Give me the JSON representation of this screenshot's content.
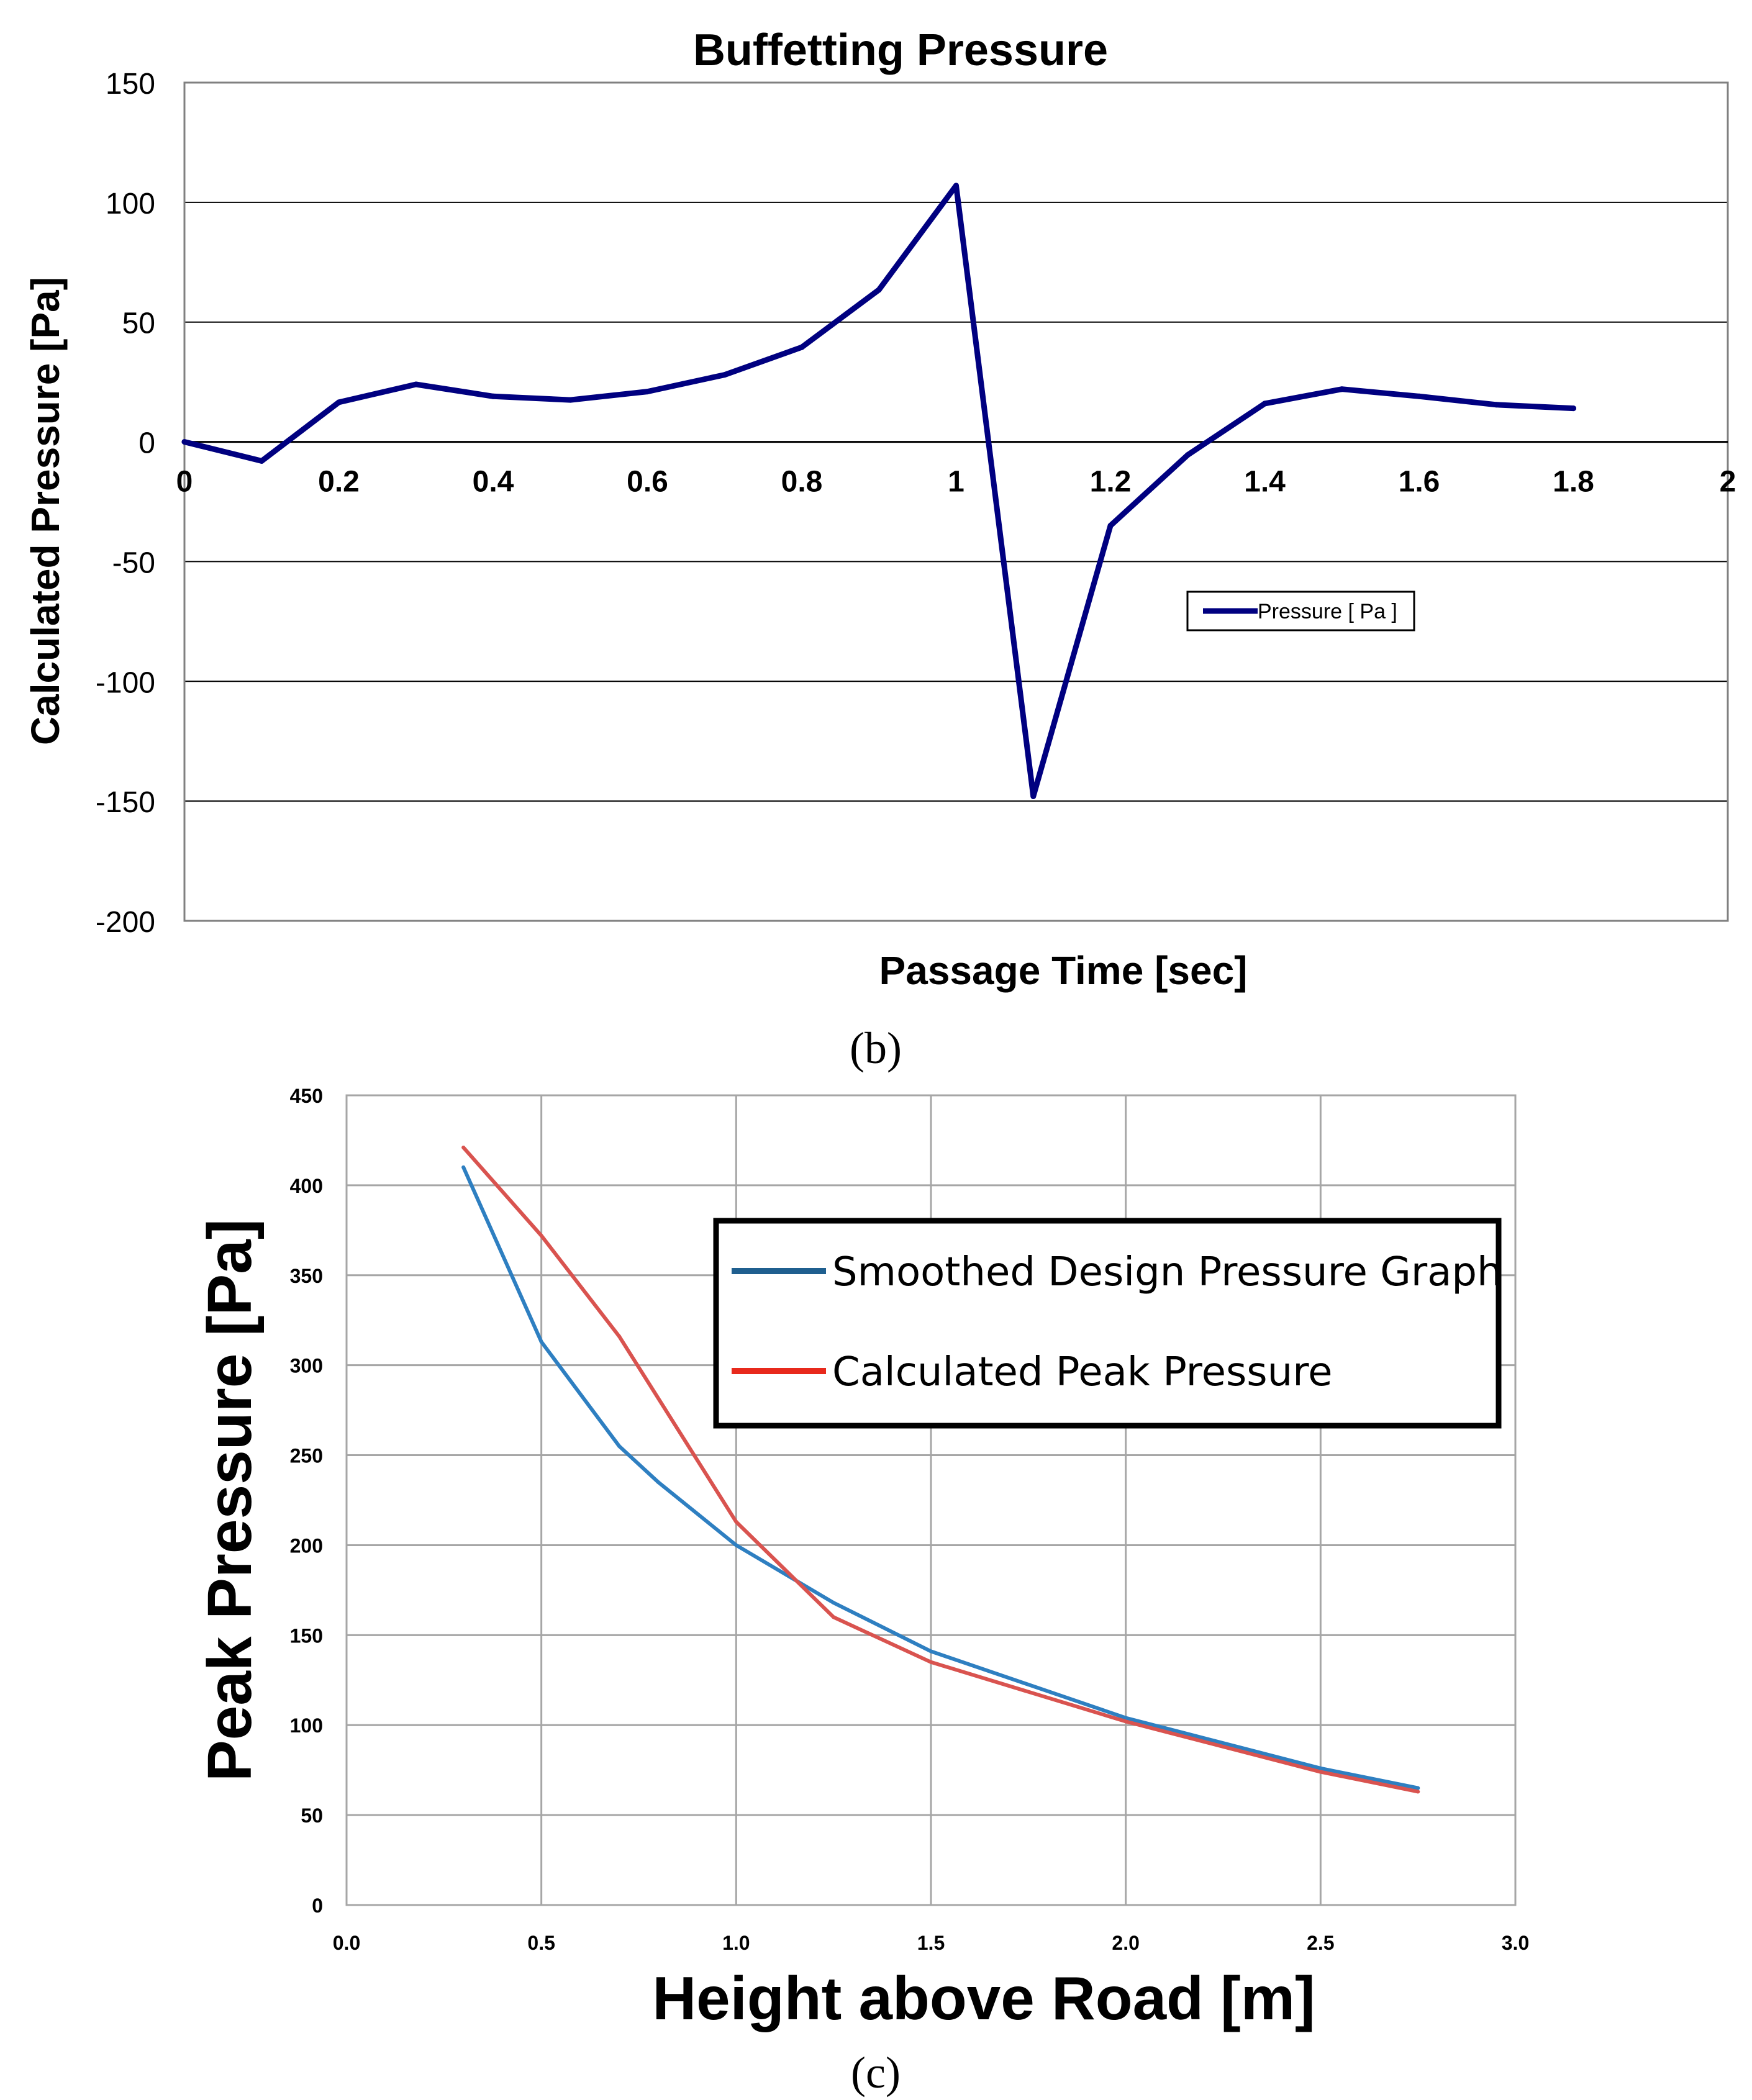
{
  "chart_data": [
    {
      "type": "line",
      "title": "Buffetting Pressure",
      "xlabel": "Passage Time [sec]",
      "ylabel": "Calculated Pressure [Pa]",
      "xlim": [
        0,
        2
      ],
      "ylim": [
        -200,
        150
      ],
      "xticks": [
        0,
        0.2,
        0.4,
        0.6,
        0.8,
        1,
        1.2,
        1.4,
        1.6,
        1.8,
        2
      ],
      "xtick_labels": [
        "0",
        "0.2",
        "0.4",
        "0.6",
        "0.8",
        "1",
        "1.2",
        "1.4",
        "1.6",
        "1.8",
        "2"
      ],
      "yticks": [
        150,
        100,
        50,
        0,
        -50,
        -100,
        -150,
        -200
      ],
      "ytick_labels": [
        "150",
        "100",
        "50",
        "0",
        "-50",
        "-100",
        "-150",
        "-200"
      ],
      "grid": "horizontal",
      "legend_position": "lower-right",
      "caption": "(b)",
      "series": [
        {
          "name": "Pressure [ Pa ]",
          "color": "#000080",
          "x": [
            0,
            0.1,
            0.2,
            0.3,
            0.4,
            0.5,
            0.6,
            0.7,
            0.8,
            0.9,
            1.0,
            1.1,
            1.2,
            1.3,
            1.4,
            1.5,
            1.6,
            1.7,
            1.8
          ],
          "y": [
            0,
            -8,
            16.5,
            24,
            19,
            17.5,
            21,
            28,
            39.5,
            63.5,
            107,
            -148,
            -35,
            -5.5,
            16,
            22,
            19,
            15.5,
            14
          ]
        }
      ]
    },
    {
      "type": "line",
      "title": "",
      "xlabel": "Height above Road [m]",
      "ylabel": "Peak Pressure [Pa]",
      "xlim": [
        0,
        3
      ],
      "ylim": [
        0,
        450
      ],
      "xticks": [
        0,
        0.5,
        1,
        1.5,
        2,
        2.5,
        3
      ],
      "xtick_labels": [
        "0.0",
        "0.5",
        "1.0",
        "1.5",
        "2.0",
        "2.5",
        "3.0"
      ],
      "yticks": [
        0,
        50,
        100,
        150,
        200,
        250,
        300,
        350,
        400,
        450
      ],
      "ytick_labels": [
        "0",
        "50",
        "100",
        "150",
        "200",
        "250",
        "300",
        "350",
        "400",
        "450"
      ],
      "grid": "both",
      "legend_position": "top-right",
      "caption": "(c)",
      "series": [
        {
          "name": "Smoothed Design Pressure Graph",
          "color": "#2e7fc1",
          "legend_color": "#1f5f8f",
          "x": [
            0.3,
            0.5,
            0.7,
            0.8,
            1.0,
            1.25,
            1.5,
            2.0,
            2.5,
            2.75
          ],
          "y": [
            410,
            313,
            255,
            235,
            200,
            168,
            141,
            104,
            76,
            65
          ]
        },
        {
          "name": "Calculated Peak Pressure",
          "color": "#d9534f",
          "legend_color": "#e8291c",
          "x": [
            0.3,
            0.5,
            0.7,
            1.0,
            1.25,
            1.5,
            2.0,
            2.5,
            2.75
          ],
          "y": [
            421,
            372,
            316,
            213,
            160,
            135,
            102,
            74,
            63
          ]
        }
      ]
    }
  ]
}
